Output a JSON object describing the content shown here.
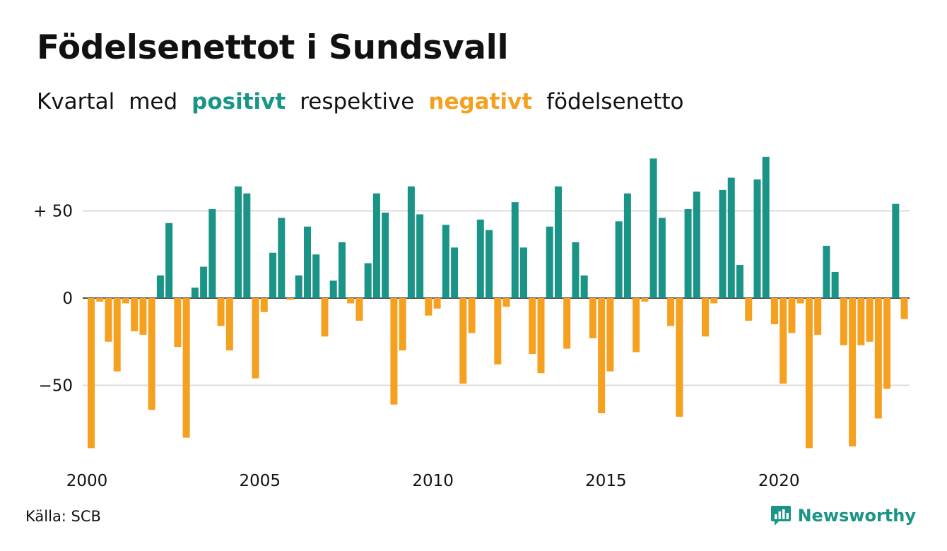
{
  "title": "Födelsenettot i Sundsvall",
  "subtitle": {
    "parts": [
      "Kvartal",
      "med",
      "positivt",
      "respektive",
      "negativt",
      "födelsenetto"
    ]
  },
  "source": "Källa: SCB",
  "brand": {
    "name": "Newsworthy",
    "icon": "chart-bubble-icon"
  },
  "colors": {
    "positive": "#1a9486",
    "negative": "#f5a01f",
    "grid": "#dcdcdc",
    "text": "#111111"
  },
  "chart_data": {
    "type": "bar",
    "x_ticks": [
      "2000",
      "2005",
      "2010",
      "2015",
      "2020"
    ],
    "y_ticks": [
      {
        "value": 50,
        "label": "+ 50"
      },
      {
        "value": 0,
        "label": "0"
      },
      {
        "value": -50,
        "label": "−50"
      }
    ],
    "ylim": [
      -90,
      85
    ],
    "grid": true,
    "start_year": 2000,
    "values": [
      -86,
      -2,
      -25,
      -42,
      -3,
      -19,
      -21,
      -64,
      13,
      43,
      -28,
      -80,
      6,
      18,
      51,
      -16,
      -30,
      64,
      60,
      -46,
      -8,
      26,
      46,
      -1,
      13,
      41,
      25,
      -22,
      10,
      32,
      -3,
      -13,
      20,
      60,
      49,
      -61,
      -30,
      64,
      48,
      -10,
      -6,
      42,
      29,
      -49,
      -20,
      45,
      39,
      -38,
      -5,
      55,
      29,
      -32,
      -43,
      41,
      64,
      -29,
      32,
      13,
      -23,
      -66,
      -42,
      44,
      60,
      -31,
      -2,
      80,
      46,
      -16,
      -68,
      51,
      61,
      -22,
      -3,
      62,
      69,
      19,
      -13,
      68,
      81,
      -15,
      -49,
      -20,
      -3,
      -86,
      -21,
      30,
      15,
      -27,
      -85,
      -27,
      -25,
      -69,
      -52,
      54,
      -12
    ]
  }
}
